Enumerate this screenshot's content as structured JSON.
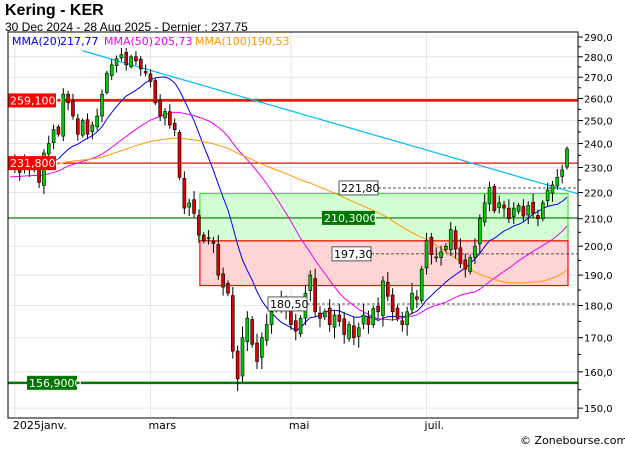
{
  "header": {
    "title": "Kering - KER",
    "subtitle": "30 Dec 2024 - 28 Aug 2025 - Dernier : 237.75"
  },
  "legend": [
    {
      "label": "MMA(20)",
      "value": "217,77",
      "color": "#0000ee"
    },
    {
      "label": "MMA(50)",
      "value": "205,73",
      "color": "#ee00ee"
    },
    {
      "label": "MMA(100)",
      "value": "190,53",
      "color": "#ff9900"
    }
  ],
  "copyright": "© Zonebourse.com",
  "chart_data": {
    "type": "candlestick",
    "scale": "log",
    "ylim": [
      147.5,
      292.5
    ],
    "yticks": [
      150,
      160,
      170,
      180,
      190,
      200,
      210,
      220,
      230,
      240,
      250,
      260,
      270,
      280,
      290
    ],
    "ytick_labels": [
      "150,0",
      "160,0",
      "170,0",
      "180,0",
      "190,0",
      "200,0",
      "210,0",
      "220,0",
      "230,0",
      "240,0",
      "250,0",
      "260,0",
      "270,0",
      "280,0",
      "290,0"
    ],
    "xtick_labels": [
      {
        "label": "2025janv.",
        "index": 1
      },
      {
        "label": "mars",
        "index": 29
      },
      {
        "label": "mai",
        "index": 58
      },
      {
        "label": "juil.",
        "index": 86
      }
    ],
    "grid": true,
    "up_color": "#00cc00",
    "down_color": "#dd0000",
    "closes": [
      233,
      230,
      228,
      232,
      229,
      231,
      224,
      236,
      240,
      246,
      244,
      262,
      258,
      252,
      244,
      250,
      244,
      248,
      252,
      262,
      272,
      276,
      279,
      281,
      276,
      280,
      278,
      274,
      272,
      268,
      258,
      252,
      254,
      248,
      246,
      226,
      214,
      216,
      212,
      204,
      202,
      203,
      201,
      190,
      186,
      184,
      166,
      158,
      170,
      176,
      168,
      163,
      170,
      174,
      178,
      181,
      182,
      179,
      174,
      172,
      176,
      184,
      190,
      178,
      176,
      178,
      174,
      177,
      175,
      171,
      174,
      170,
      173,
      177,
      174,
      179,
      178,
      188,
      183,
      178,
      176,
      174,
      178,
      184,
      182,
      192,
      202,
      197,
      196,
      198,
      200,
      206,
      199,
      194,
      192,
      196,
      200,
      210,
      216,
      222,
      213,
      216,
      214,
      210,
      214,
      215,
      211,
      215,
      212,
      210,
      216,
      221,
      223,
      226,
      229,
      237.75
    ],
    "moving_averages": [
      {
        "name": "MMA(20)",
        "last": 217.77,
        "color": "#0000ee"
      },
      {
        "name": "MMA(50)",
        "last": 205.73,
        "color": "#ee00ee"
      },
      {
        "name": "MMA(100)",
        "last": 190.53,
        "color": "#ff9900"
      }
    ],
    "levels": [
      {
        "value": 259.1,
        "label": "259,1000",
        "color": "#ff0000",
        "style": "thick"
      },
      {
        "value": 231.8,
        "label": "231,8000",
        "color": "#ff0000",
        "style": "thin"
      },
      {
        "value": 210.3,
        "label": "210,3000",
        "color": "#007700",
        "style": "thin"
      },
      {
        "value": 156.9,
        "label": "156,9000",
        "color": "#007700",
        "style": "thick"
      }
    ],
    "dashed_levels": [
      {
        "value": 221.8,
        "label": "221,80"
      },
      {
        "value": 197.3,
        "label": "197,30"
      },
      {
        "value": 180.5,
        "label": "180,50"
      }
    ],
    "zones": [
      {
        "from": 201.9,
        "to": 219.6,
        "start_index": 39,
        "fill": "#d4ffd4",
        "stroke": "#33ee33"
      },
      {
        "from": 186.5,
        "to": 201.9,
        "start_index": 39,
        "fill": "#ffd4d4",
        "stroke": "#ff0000"
      }
    ],
    "trendline": {
      "from_index": 15,
      "from_value": 283,
      "to_value": 219.5,
      "color": "#00bbee"
    }
  }
}
